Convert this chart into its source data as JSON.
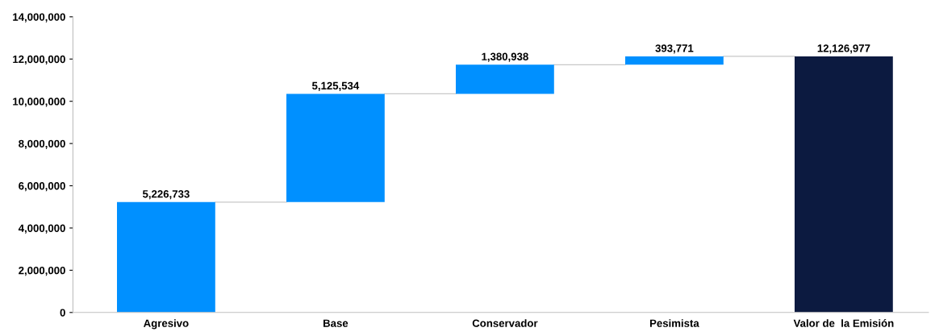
{
  "chart_data": {
    "type": "bar",
    "categories": [
      "Agresivo",
      "Base",
      "Conservador",
      "Pesimista",
      "Valor de  la Emisión"
    ],
    "values": [
      5226733,
      5125534,
      1380938,
      393771,
      12126977
    ],
    "base": [
      0,
      5226733,
      10352267,
      11733205,
      0
    ],
    "colors": [
      "#0090ff",
      "#0090ff",
      "#0090ff",
      "#0090ff",
      "#0c1a40"
    ],
    "value_labels": [
      "5,226,733",
      "5,125,534",
      "1,380,938",
      "393,771",
      "12,126,977"
    ],
    "ylim": [
      0,
      14000000
    ],
    "yticks": [
      0,
      {
        "value": 2000000,
        "label": "2,000,000"
      },
      {
        "value": 4000000,
        "label": "4,000,000"
      },
      {
        "value": 6000000,
        "label": "6,000,000"
      },
      {
        "value": 8000000,
        "label": "8,000,000"
      },
      {
        "value": 10000000,
        "label": "10,000,000"
      },
      {
        "value": 12000000,
        "label": "12,000,000"
      },
      {
        "value": 14000000,
        "label": "14,000,000"
      }
    ],
    "grid": false,
    "legend": false
  }
}
